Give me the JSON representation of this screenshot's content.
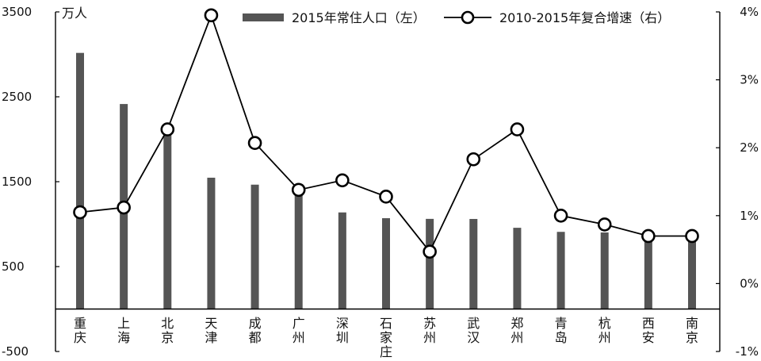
{
  "chart_data": {
    "type": "bar",
    "categories": [
      "重庆",
      "上海",
      "北京",
      "天津",
      "成都",
      "广州",
      "深圳",
      "石家庄",
      "苏州",
      "武汉",
      "郑州",
      "青岛",
      "杭州",
      "西安",
      "南京"
    ],
    "series": [
      {
        "name": "2015年常住人口（左）",
        "type": "bar",
        "axis": "left",
        "color": "#555555",
        "values": [
          3017,
          2415,
          2171,
          1547,
          1465,
          1350,
          1138,
          1070,
          1062,
          1061,
          957,
          909,
          902,
          870,
          824
        ]
      },
      {
        "name": "2010-2015年复合增速（右）",
        "type": "line",
        "axis": "right",
        "color": "#000000",
        "values": [
          1.05,
          1.12,
          2.27,
          3.95,
          2.07,
          1.38,
          1.52,
          1.28,
          0.47,
          1.83,
          2.27,
          1.0,
          0.87,
          0.7,
          0.7
        ]
      }
    ],
    "y_left": {
      "unit": "万人",
      "ylim": [
        -500,
        3500
      ],
      "ticks": [
        -500,
        500,
        1500,
        2500,
        3500
      ],
      "tick_labels": [
        "-500",
        "500",
        "1500",
        "2500",
        "3500"
      ]
    },
    "y_right": {
      "ylim": [
        -1,
        4
      ],
      "ticks": [
        -1,
        0,
        1,
        2,
        3,
        4
      ],
      "tick_labels": [
        "-1%",
        "0%",
        "1%",
        "2%",
        "3%",
        "4%"
      ]
    },
    "legend_position": "top",
    "grid": false
  }
}
